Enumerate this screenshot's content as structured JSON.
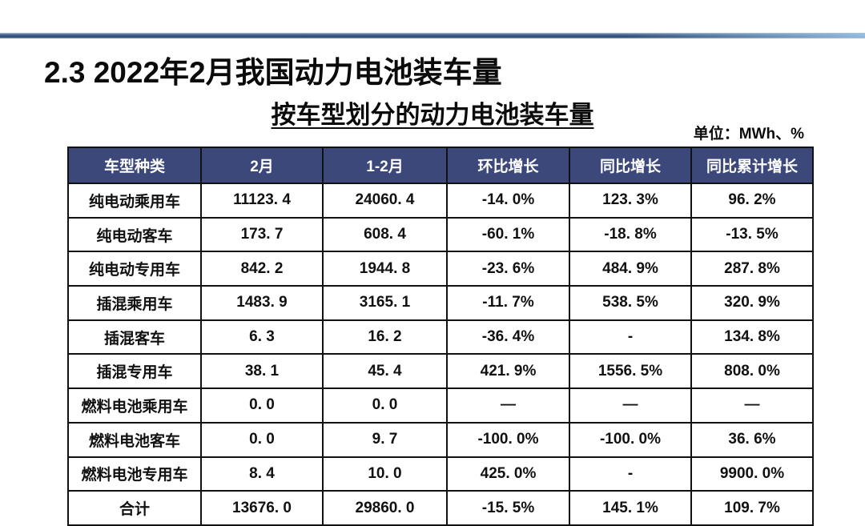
{
  "page": {
    "title": "2.3 2022年2月我国动力电池装车量",
    "subtitle": "按车型划分的动力电池装车量",
    "unit_note": "单位：MWh、%"
  },
  "colors": {
    "header_bg": "#3b4879",
    "header_text": "#ffffff",
    "table_border": "#111111",
    "accent_line_dark": "#2e4a70",
    "accent_line_light": "#9ec5e8"
  },
  "chart_data": {
    "type": "table",
    "title": "按车型划分的动力电池装车量",
    "unit": "MWh、%",
    "columns": [
      "车型种类",
      "2月",
      "1-2月",
      "环比增长",
      "同比增长",
      "同比累计增长"
    ],
    "rows": [
      [
        "纯电动乘用车",
        "11123. 4",
        "24060. 4",
        "-14. 0%",
        "123. 3%",
        "96. 2%"
      ],
      [
        "纯电动客车",
        "173. 7",
        "608. 4",
        "-60. 1%",
        "-18. 8%",
        "-13. 5%"
      ],
      [
        "纯电动专用车",
        "842. 2",
        "1944. 8",
        "-23. 6%",
        "484. 9%",
        "287. 8%"
      ],
      [
        "插混乘用车",
        "1483. 9",
        "3165. 1",
        "-11. 7%",
        "538. 5%",
        "320. 9%"
      ],
      [
        "插混客车",
        "6. 3",
        "16. 2",
        "-36. 4%",
        "-",
        "134. 8%"
      ],
      [
        "插混专用车",
        "38. 1",
        "45. 4",
        "421. 9%",
        "1556. 5%",
        "808. 0%"
      ],
      [
        "燃料电池乘用车",
        "0. 0",
        "0. 0",
        "—",
        "—",
        "—"
      ],
      [
        "燃料电池客车",
        "0. 0",
        "9. 7",
        "-100. 0%",
        "-100. 0%",
        "36. 6%"
      ],
      [
        "燃料电池专用车",
        "8. 4",
        "10. 0",
        "425. 0%",
        "-",
        "9900. 0%"
      ],
      [
        "合计",
        "13676. 0",
        "29860. 0",
        "-15. 5%",
        "145. 1%",
        "109. 7%"
      ]
    ]
  }
}
